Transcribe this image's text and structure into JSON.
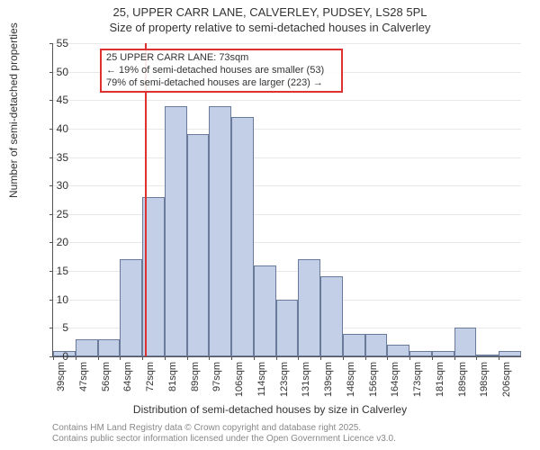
{
  "titles": {
    "main": "25, UPPER CARR LANE, CALVERLEY, PUDSEY, LS28 5PL",
    "sub": "Size of property relative to semi-detached houses in Calverley"
  },
  "ylabel": "Number of semi-detached properties",
  "xlabel": "Distribution of semi-detached houses by size in Calverley",
  "chart": {
    "type": "bar",
    "ylim": [
      0,
      55
    ],
    "ytick_step": 5,
    "bar_fill": "#c3cfe6",
    "bar_border": "#6a7a9a",
    "background_color": "#ffffff",
    "grid_color": "#e8e8e8",
    "reference_line_color": "#dd3030",
    "reference_x_value": 73,
    "categories": [
      "39sqm",
      "47sqm",
      "56sqm",
      "64sqm",
      "72sqm",
      "81sqm",
      "89sqm",
      "97sqm",
      "106sqm",
      "114sqm",
      "123sqm",
      "131sqm",
      "139sqm",
      "148sqm",
      "156sqm",
      "164sqm",
      "173sqm",
      "181sqm",
      "189sqm",
      "198sqm",
      "206sqm"
    ],
    "values": [
      1,
      3,
      3,
      17,
      28,
      44,
      39,
      44,
      42,
      16,
      10,
      17,
      14,
      4,
      4,
      2,
      1,
      1,
      5,
      0,
      1
    ],
    "title_fontsize": 13,
    "label_fontsize": 12,
    "tick_fontsize": 11
  },
  "annotation": {
    "line1": "25 UPPER CARR LANE: 73sqm",
    "line2": "← 19% of semi-detached houses are smaller (53)",
    "line3": "79% of semi-detached houses are larger (223) →"
  },
  "footer": {
    "l1": "Contains HM Land Registry data © Crown copyright and database right 2025.",
    "l2": "Contains public sector information licensed under the Open Government Licence v3.0."
  }
}
